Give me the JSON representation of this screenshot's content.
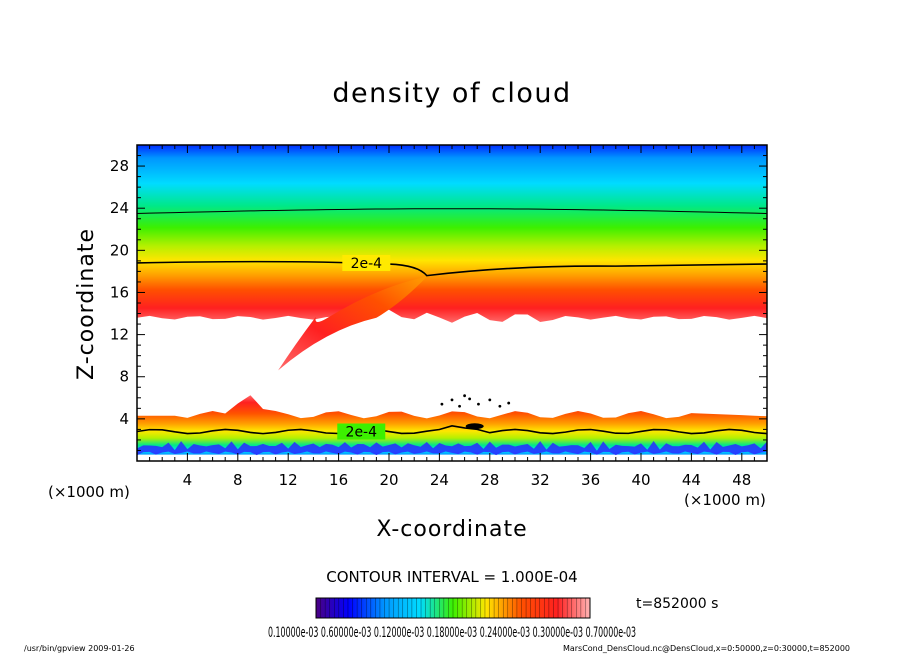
{
  "chart_data": {
    "type": "heatmap",
    "title": "density of cloud",
    "xlabel": "X-coordinate",
    "ylabel": "Z-coordinate",
    "x_unit": "(×1000 m)",
    "y_unit": "(×1000 m)",
    "xlim": [
      0,
      50
    ],
    "ylim": [
      0,
      30
    ],
    "x_ticks": [
      4,
      8,
      12,
      16,
      20,
      24,
      28,
      32,
      36,
      40,
      44,
      48
    ],
    "y_ticks": [
      4,
      8,
      12,
      16,
      20,
      24,
      28
    ],
    "contour_label": "2e-4",
    "contour_interval_text": "CONTOUR INTERVAL = 1.000E-04",
    "time_text": "t=852000 s",
    "colorbar_range": [
      0.0001,
      0.0007
    ],
    "colorbar_label_text": "0.10000e-03 0.60000e-03 0.12000e-03 0.18000e-03 0.24000e-03 0.30000e-03 0.70000e-03",
    "upper_layer": {
      "outer_boundary_top_z": 29.5,
      "lower_edge_z": 13.6,
      "contour_2e4_left_z": 18.8,
      "contour_2e4_right_z": 18.7,
      "outer_contour_z": 23.5,
      "max_density_band_z": 15.5
    },
    "plume": {
      "tip_x": 11.2,
      "tip_z": 8.6,
      "join_x": 23.0,
      "join_z": 17.5
    },
    "lower_layer": {
      "top_z": 4.8,
      "contour_2e4_z": 2.8,
      "bump_x": 8.8,
      "bump_z": 6.5
    },
    "palette": [
      "#4b0082",
      "#0000ff",
      "#0096ff",
      "#00dcff",
      "#00e88a",
      "#3cf000",
      "#b4f000",
      "#ffe600",
      "#ffa000",
      "#ff5000",
      "#ff2020",
      "#ff6a6a",
      "#ffb4b4"
    ]
  },
  "footer": {
    "left": "/usr/bin/gpview  2009-01-26",
    "right": "MarsCond_DensCloud.nc@DensCloud,x=0:50000,z=0:30000,t=852000"
  }
}
